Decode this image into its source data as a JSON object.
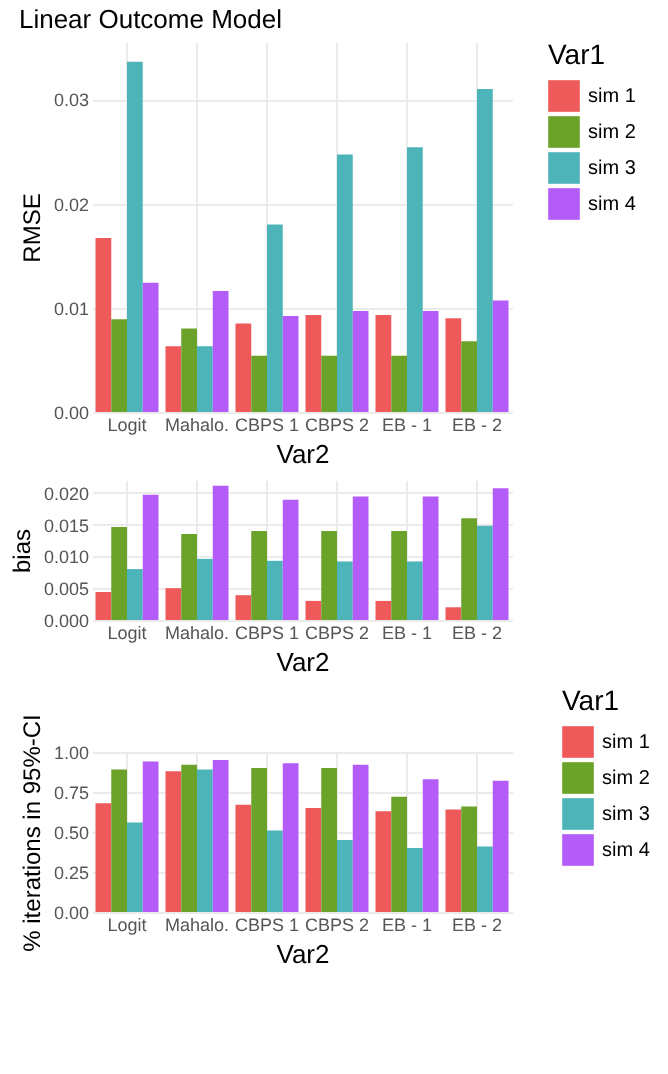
{
  "chart_data": [
    {
      "type": "bar",
      "title": "Linear Outcome Model",
      "xlabel": "Var2",
      "ylabel": "RMSE",
      "legend_title": "Var1",
      "legend": "right",
      "grid": true,
      "categories": [
        "Logit",
        "Mahalo.",
        "CBPS 1",
        "CBPS 2",
        "EB - 1",
        "EB - 2"
      ],
      "ylim": [
        0,
        0.0355
      ],
      "yticks": [
        {
          "value": 0,
          "label": "0.00"
        },
        0.01,
        0.02,
        0.03
      ],
      "series": [
        {
          "name": "sim 1",
          "color": "#ee5a5a",
          "values": [
            0.0167,
            0.0063,
            0.0085,
            0.0093,
            0.0093,
            0.009
          ]
        },
        {
          "name": "sim 2",
          "color": "#6ba22a",
          "values": [
            0.0089,
            0.008,
            0.0054,
            0.0054,
            0.0054,
            0.0068
          ]
        },
        {
          "name": "sim 3",
          "color": "#4db5ba",
          "values": [
            0.0336,
            0.0063,
            0.018,
            0.0247,
            0.0254,
            0.031
          ]
        },
        {
          "name": "sim 4",
          "color": "#b45cf7",
          "values": [
            0.0124,
            0.0116,
            0.0092,
            0.0097,
            0.0097,
            0.0107
          ]
        }
      ]
    },
    {
      "type": "bar",
      "xlabel": "Var2",
      "ylabel": "bias",
      "legend": false,
      "grid": true,
      "categories": [
        "Logit",
        "Mahalo.",
        "CBPS 1",
        "CBPS 2",
        "EB - 1",
        "EB - 2"
      ],
      "ylim": [
        0,
        0.022
      ],
      "yticks": [
        {
          "value": 0,
          "label": "0.000"
        },
        0.005,
        {
          "value": 0.01,
          "label": "0.010"
        },
        0.015,
        {
          "value": 0.02,
          "label": "0.020"
        }
      ],
      "series": [
        {
          "color": "#ee5a5a",
          "values": [
            0.0044,
            0.005,
            0.0039,
            0.003,
            0.003,
            0.002
          ]
        },
        {
          "color": "#6ba22a",
          "values": [
            0.0146,
            0.0135,
            0.014,
            0.014,
            0.014,
            0.016
          ]
        },
        {
          "color": "#4db5ba",
          "values": [
            0.008,
            0.0096,
            0.0093,
            0.0092,
            0.0092,
            0.0148
          ]
        },
        {
          "color": "#b45cf7",
          "values": [
            0.0197,
            0.0211,
            0.0189,
            0.0194,
            0.0194,
            0.0207
          ]
        }
      ]
    },
    {
      "type": "bar",
      "xlabel": "Var2",
      "ylabel": "% iterations in 95%-CI",
      "legend_title": "Var1",
      "legend": "right",
      "grid": true,
      "categories": [
        "Logit",
        "Mahalo.",
        "CBPS 1",
        "CBPS 2",
        "EB - 1",
        "EB - 2"
      ],
      "ylim": [
        0,
        1.0
      ],
      "yticks": [
        {
          "value": 0,
          "label": "0.00"
        },
        0.25,
        {
          "value": 0.5,
          "label": "0.50"
        },
        0.75,
        {
          "value": 1,
          "label": "1.00"
        }
      ],
      "series": [
        {
          "name": "sim 1",
          "color": "#ee5a5a",
          "values": [
            0.68,
            0.88,
            0.67,
            0.65,
            0.63,
            0.64
          ]
        },
        {
          "name": "sim 2",
          "color": "#6ba22a",
          "values": [
            0.89,
            0.92,
            0.9,
            0.9,
            0.72,
            0.66
          ]
        },
        {
          "name": "sim 3",
          "color": "#4db5ba",
          "values": [
            0.56,
            0.89,
            0.51,
            0.45,
            0.4,
            0.41
          ]
        },
        {
          "name": "sim 4",
          "color": "#b45cf7",
          "values": [
            0.94,
            0.95,
            0.93,
            0.92,
            0.83,
            0.82
          ]
        }
      ]
    }
  ]
}
